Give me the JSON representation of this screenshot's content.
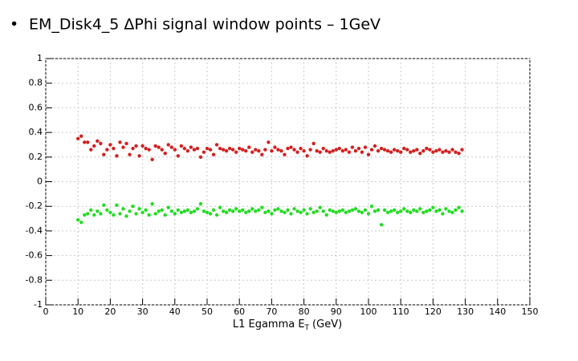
{
  "chart_data": {
    "type": "scatter",
    "title": "EM_Disk4_5 ΔPhi signal window points – 1GeV",
    "xlabel": {
      "text": "L1 Egamma E",
      "subscript": "T",
      "suffix": "(GeV)"
    },
    "xlim": [
      0,
      150
    ],
    "xticks": [
      0,
      10,
      20,
      30,
      40,
      50,
      60,
      70,
      80,
      90,
      100,
      110,
      120,
      130,
      140,
      150
    ],
    "ylim": [
      -1,
      1
    ],
    "yticks": [
      -1,
      -0.8,
      -0.6,
      -0.4,
      -0.2,
      0,
      0.2,
      0.4,
      0.6,
      0.8,
      1
    ],
    "grid": true,
    "x": [
      10,
      11,
      12,
      13,
      14,
      15,
      16,
      17,
      18,
      19,
      20,
      21,
      22,
      23,
      24,
      25,
      26,
      27,
      28,
      29,
      30,
      31,
      32,
      33,
      34,
      35,
      36,
      37,
      38,
      39,
      40,
      41,
      42,
      43,
      44,
      45,
      46,
      47,
      48,
      49,
      50,
      51,
      52,
      53,
      54,
      55,
      56,
      57,
      58,
      59,
      60,
      61,
      62,
      63,
      64,
      65,
      66,
      67,
      68,
      69,
      70,
      71,
      72,
      73,
      74,
      75,
      76,
      77,
      78,
      79,
      80,
      81,
      82,
      83,
      84,
      85,
      86,
      87,
      88,
      89,
      90,
      91,
      92,
      93,
      94,
      95,
      96,
      97,
      98,
      99,
      100,
      101,
      102,
      103,
      104,
      105,
      106,
      107,
      108,
      109,
      110,
      111,
      112,
      113,
      114,
      115,
      116,
      117,
      118,
      119,
      120,
      121,
      122,
      123,
      124,
      125,
      126,
      127,
      128,
      129
    ],
    "series": [
      {
        "color": "#d42020",
        "values": [
          0.35,
          0.37,
          0.32,
          0.32,
          0.26,
          0.29,
          0.33,
          0.31,
          0.22,
          0.26,
          0.3,
          0.27,
          0.21,
          0.32,
          0.28,
          0.31,
          0.22,
          0.27,
          0.29,
          0.21,
          0.29,
          0.27,
          0.26,
          0.18,
          0.29,
          0.28,
          0.26,
          0.23,
          0.3,
          0.28,
          0.26,
          0.21,
          0.29,
          0.27,
          0.25,
          0.28,
          0.26,
          0.27,
          0.2,
          0.24,
          0.27,
          0.26,
          0.22,
          0.3,
          0.27,
          0.26,
          0.25,
          0.27,
          0.26,
          0.24,
          0.27,
          0.26,
          0.25,
          0.28,
          0.24,
          0.26,
          0.25,
          0.22,
          0.26,
          0.32,
          0.25,
          0.28,
          0.26,
          0.25,
          0.22,
          0.27,
          0.28,
          0.26,
          0.24,
          0.27,
          0.25,
          0.21,
          0.26,
          0.31,
          0.25,
          0.24,
          0.27,
          0.25,
          0.24,
          0.25,
          0.26,
          0.27,
          0.25,
          0.26,
          0.24,
          0.28,
          0.25,
          0.27,
          0.24,
          0.28,
          0.22,
          0.26,
          0.29,
          0.25,
          0.27,
          0.26,
          0.25,
          0.24,
          0.26,
          0.25,
          0.24,
          0.27,
          0.26,
          0.24,
          0.25,
          0.26,
          0.23,
          0.25,
          0.27,
          0.26,
          0.24,
          0.25,
          0.26,
          0.24,
          0.25,
          0.24,
          0.26,
          0.24,
          0.23,
          0.26
        ]
      },
      {
        "color": "#22dd22",
        "values": [
          -0.31,
          -0.33,
          -0.27,
          -0.26,
          -0.23,
          -0.27,
          -0.24,
          -0.26,
          -0.19,
          -0.23,
          -0.25,
          -0.27,
          -0.19,
          -0.26,
          -0.22,
          -0.28,
          -0.24,
          -0.2,
          -0.26,
          -0.22,
          -0.25,
          -0.23,
          -0.27,
          -0.18,
          -0.26,
          -0.24,
          -0.23,
          -0.27,
          -0.21,
          -0.24,
          -0.26,
          -0.23,
          -0.25,
          -0.24,
          -0.23,
          -0.25,
          -0.24,
          -0.22,
          -0.18,
          -0.24,
          -0.25,
          -0.26,
          -0.23,
          -0.27,
          -0.21,
          -0.24,
          -0.25,
          -0.23,
          -0.24,
          -0.22,
          -0.24,
          -0.23,
          -0.25,
          -0.24,
          -0.22,
          -0.24,
          -0.23,
          -0.21,
          -0.25,
          -0.24,
          -0.26,
          -0.23,
          -0.22,
          -0.24,
          -0.25,
          -0.23,
          -0.26,
          -0.22,
          -0.24,
          -0.25,
          -0.23,
          -0.26,
          -0.22,
          -0.25,
          -0.24,
          -0.21,
          -0.24,
          -0.27,
          -0.23,
          -0.24,
          -0.25,
          -0.24,
          -0.23,
          -0.25,
          -0.24,
          -0.23,
          -0.22,
          -0.24,
          -0.25,
          -0.23,
          -0.26,
          -0.2,
          -0.24,
          -0.23,
          -0.35,
          -0.23,
          -0.25,
          -0.24,
          -0.23,
          -0.25,
          -0.24,
          -0.22,
          -0.24,
          -0.25,
          -0.23,
          -0.24,
          -0.22,
          -0.25,
          -0.24,
          -0.23,
          -0.21,
          -0.24,
          -0.23,
          -0.26,
          -0.22,
          -0.24,
          -0.25,
          -0.23,
          -0.21,
          -0.24
        ]
      }
    ]
  }
}
